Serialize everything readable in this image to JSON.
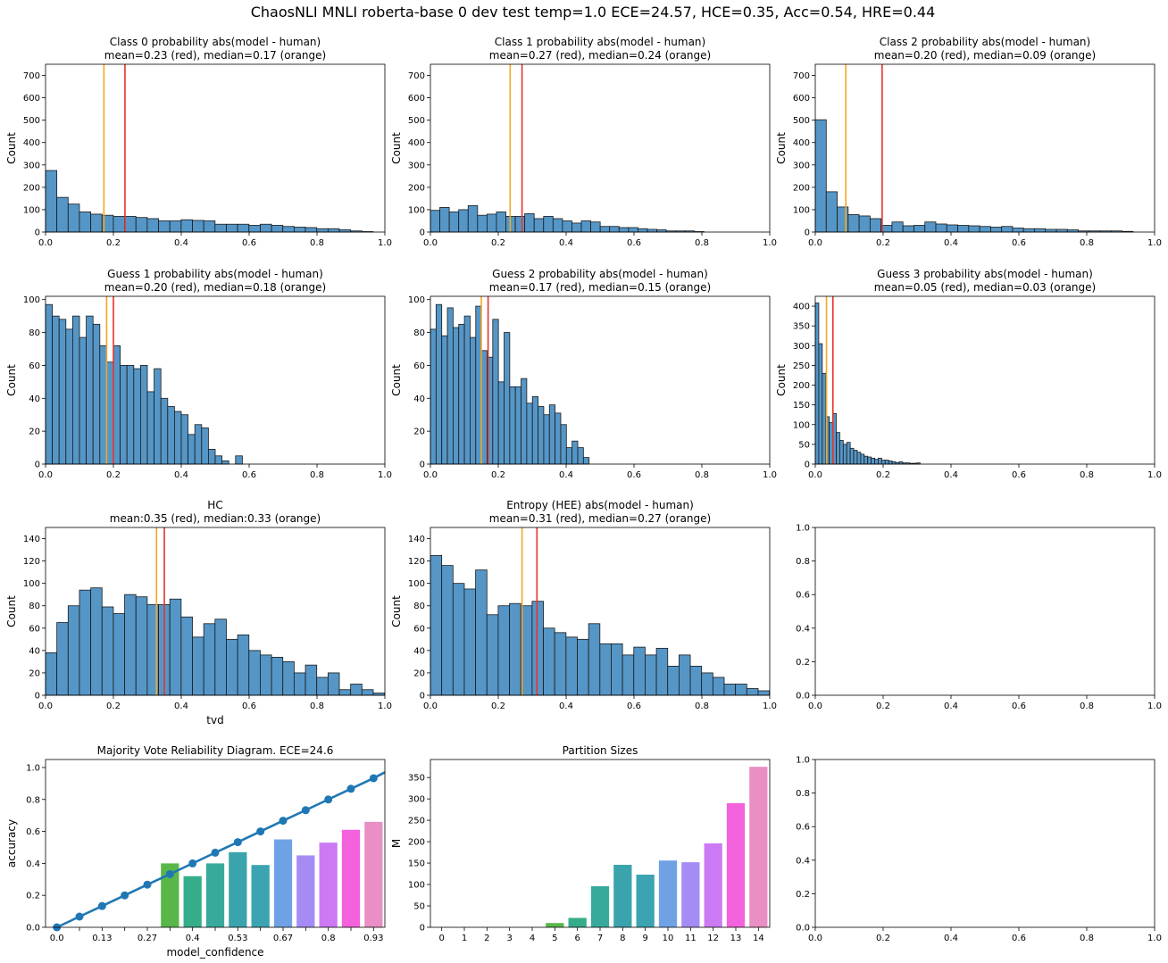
{
  "suptitle": "ChaosNLI MNLI  roberta-base 0 dev  test  temp=1.0 ECE=24.57, HCE=0.35, Acc=0.54, HRE=0.44",
  "chart_data": [
    {
      "type": "bar",
      "title": [
        "Class 0 probability abs(model - human)",
        "mean=0.23 (red), median=0.17 (orange)"
      ],
      "xlabel": "",
      "ylabel": "Count",
      "xlim": [
        0,
        1
      ],
      "ylim": [
        0,
        750
      ],
      "xticks": [
        "0.0",
        "0.2",
        "0.4",
        "0.6",
        "0.8",
        "1.0"
      ],
      "yticks": [
        "0",
        "100",
        "200",
        "300",
        "400",
        "500",
        "600",
        "700"
      ],
      "bin_width": 0.0333,
      "values": [
        275,
        155,
        125,
        90,
        80,
        75,
        70,
        70,
        65,
        60,
        50,
        50,
        55,
        52,
        50,
        35,
        35,
        35,
        30,
        35,
        30,
        25,
        22,
        20,
        15,
        15,
        10,
        5,
        2,
        0
      ],
      "mean": 0.234,
      "median": 0.172
    },
    {
      "type": "bar",
      "title": [
        "Class 1 probability abs(model - human)",
        "mean=0.27 (red), median=0.24 (orange)"
      ],
      "xlabel": "",
      "ylabel": "Count",
      "xlim": [
        0,
        1
      ],
      "ylim": [
        0,
        750
      ],
      "xticks": [
        "0.0",
        "0.2",
        "0.4",
        "0.6",
        "0.8",
        "1.0"
      ],
      "yticks": [
        "0",
        "100",
        "200",
        "300",
        "400",
        "500",
        "600",
        "700"
      ],
      "bin_width": 0.0278,
      "values": [
        97,
        110,
        90,
        100,
        118,
        75,
        80,
        90,
        70,
        70,
        82,
        60,
        70,
        60,
        50,
        40,
        50,
        45,
        25,
        25,
        20,
        20,
        15,
        12,
        10,
        5,
        5,
        5,
        2,
        0
      ],
      "mean": 0.27,
      "median": 0.235
    },
    {
      "type": "bar",
      "title": [
        "Class 2 probability abs(model - human)",
        "mean=0.20 (red), median=0.09 (orange)"
      ],
      "xlabel": "",
      "ylabel": "Count",
      "xlim": [
        0,
        1
      ],
      "ylim": [
        0,
        750
      ],
      "xticks": [
        "0.0",
        "0.2",
        "0.4",
        "0.6",
        "0.8",
        "1.0"
      ],
      "yticks": [
        "0",
        "100",
        "200",
        "300",
        "400",
        "500",
        "600",
        "700"
      ],
      "bin_width": 0.0323,
      "values": [
        502,
        180,
        112,
        78,
        72,
        60,
        30,
        45,
        28,
        30,
        45,
        36,
        32,
        30,
        28,
        25,
        22,
        25,
        18,
        15,
        15,
        12,
        12,
        10,
        5,
        5,
        5,
        5,
        3,
        0
      ],
      "mean": 0.197,
      "median": 0.09
    },
    {
      "type": "bar",
      "title": [
        "Guess 1 probability abs(model - human)",
        "mean=0.20 (red), median=0.18 (orange)"
      ],
      "xlabel": "",
      "ylabel": "Count",
      "xlim": [
        0,
        1
      ],
      "ylim": [
        0,
        102
      ],
      "xticks": [
        "0.0",
        "0.2",
        "0.4",
        "0.6",
        "0.8",
        "1.0"
      ],
      "yticks": [
        "0",
        "20",
        "40",
        "60",
        "80",
        "100"
      ],
      "bin_width": 0.02,
      "values": [
        97,
        90,
        88,
        82,
        90,
        77,
        90,
        85,
        72,
        62,
        72,
        60,
        60,
        58,
        60,
        44,
        58,
        40,
        35,
        32,
        30,
        18,
        24,
        22,
        9,
        5,
        2,
        0,
        5
      ],
      "mean": 0.2,
      "median": 0.18
    },
    {
      "type": "bar",
      "title": [
        "Guess 2 probability abs(model - human)",
        "mean=0.17 (red), median=0.15 (orange)"
      ],
      "xlabel": "",
      "ylabel": "Count",
      "xlim": [
        0,
        1
      ],
      "ylim": [
        0,
        102
      ],
      "xticks": [
        "0.0",
        "0.2",
        "0.4",
        "0.6",
        "0.8",
        "1.0"
      ],
      "yticks": [
        "0",
        "20",
        "40",
        "60",
        "80",
        "100"
      ],
      "bin_width": 0.0167,
      "values": [
        82,
        97,
        78,
        95,
        83,
        85,
        90,
        77,
        96,
        69,
        65,
        88,
        50,
        80,
        47,
        47,
        52,
        37,
        41,
        35,
        30,
        36,
        31,
        24,
        10,
        14,
        10,
        4
      ],
      "mean": 0.17,
      "median": 0.15
    },
    {
      "type": "bar",
      "title": [
        "Guess 3 probability abs(model - human)",
        "mean=0.05 (red), median=0.03 (orange)"
      ],
      "xlabel": "",
      "ylabel": "Count",
      "xlim": [
        0,
        1
      ],
      "ylim": [
        0,
        425
      ],
      "xticks": [
        "0.0",
        "0.2",
        "0.4",
        "0.6",
        "0.8",
        "1.0"
      ],
      "yticks": [
        "0",
        "50",
        "100",
        "150",
        "200",
        "250",
        "300",
        "350",
        "400"
      ],
      "bin_width": 0.0103,
      "values": [
        408,
        305,
        230,
        120,
        105,
        128,
        80,
        60,
        50,
        55,
        40,
        35,
        30,
        25,
        20,
        18,
        15,
        12,
        15,
        10,
        10,
        8,
        6,
        4,
        6,
        3,
        3,
        2,
        2,
        3
      ],
      "mean": 0.052,
      "median": 0.033
    },
    {
      "type": "bar",
      "title": [
        "HC",
        "mean:0.35 (red), median:0.33 (orange)"
      ],
      "xlabel": "tvd",
      "ylabel": "Count",
      "xlim": [
        0,
        1
      ],
      "ylim": [
        0,
        150
      ],
      "xticks": [
        "0.0",
        "0.2",
        "0.4",
        "0.6",
        "0.8",
        "1.0"
      ],
      "yticks": [
        "0",
        "20",
        "40",
        "60",
        "80",
        "100",
        "120",
        "140"
      ],
      "bin_width": 0.0333,
      "values": [
        38,
        65,
        80,
        94,
        96,
        79,
        73,
        90,
        88,
        81,
        81,
        86,
        70,
        52,
        64,
        68,
        50,
        54,
        40,
        36,
        34,
        30,
        20,
        27,
        16,
        20,
        5,
        10,
        5,
        2
      ],
      "mean": 0.35,
      "median": 0.327
    },
    {
      "type": "bar",
      "title": [
        "Entropy (HEE) abs(model - human)",
        "mean=0.31 (red), median=0.27 (orange)"
      ],
      "xlabel": "",
      "ylabel": "Count",
      "xlim": [
        0,
        1
      ],
      "ylim": [
        0,
        150
      ],
      "xticks": [
        "0.0",
        "0.2",
        "0.4",
        "0.6",
        "0.8",
        "1.0"
      ],
      "yticks": [
        "0",
        "20",
        "40",
        "60",
        "80",
        "100",
        "120",
        "140"
      ],
      "bin_width": 0.0333,
      "values": [
        125,
        116,
        100,
        95,
        112,
        72,
        80,
        82,
        80,
        84,
        60,
        56,
        52,
        50,
        64,
        46,
        46,
        36,
        43,
        36,
        42,
        26,
        36,
        26,
        20,
        16,
        10,
        10,
        6,
        4
      ],
      "mean": 0.314,
      "median": 0.27
    },
    {
      "type": "empty",
      "xlim": [
        0,
        1
      ],
      "ylim": [
        0,
        1
      ],
      "xticks": [
        "0.0",
        "0.2",
        "0.4",
        "0.6",
        "0.8",
        "1.0"
      ],
      "yticks": [
        "0.0",
        "0.2",
        "0.4",
        "0.6",
        "0.8",
        "1.0"
      ]
    },
    {
      "type": "bar+line",
      "title": [
        "Majority Vote Reliability Diagram. ECE=24.6"
      ],
      "xlabel": "model_confidence",
      "ylabel": "accuracy",
      "ylim": [
        0,
        1.05
      ],
      "yticks": [
        "0.0",
        "0.2",
        "0.4",
        "0.6",
        "0.8",
        "1.0"
      ],
      "categories": [
        "0.0",
        "0.07",
        "0.13",
        "0.2",
        "0.27",
        "0.33",
        "0.4",
        "0.47",
        "0.53",
        "0.6",
        "0.67",
        "0.73",
        "0.8",
        "0.87",
        "0.93"
      ],
      "shown_tick_labels": [
        "0.0",
        "0.13",
        "0.27",
        "0.4",
        "0.53",
        "0.67",
        "0.8",
        "0.93"
      ],
      "bar_values": [
        0,
        0,
        0,
        0,
        0,
        0.4,
        0.32,
        0.4,
        0.47,
        0.39,
        0.55,
        0.45,
        0.53,
        0.61,
        0.66
      ],
      "line_values": [
        0.0,
        0.067,
        0.133,
        0.2,
        0.267,
        0.333,
        0.4,
        0.467,
        0.533,
        0.6,
        0.667,
        0.733,
        0.8,
        0.867,
        0.933
      ],
      "line_extends_to": 0.97,
      "bar_colors": [
        "#f77189",
        "#e4812a",
        "#bb9832",
        "#97a431",
        "#50b131",
        "#59b74a",
        "#36ad8a",
        "#38aa9d",
        "#3ba3ac",
        "#3ca3b2",
        "#6ea2e5",
        "#a48cf4",
        "#cc7af4",
        "#f461dd",
        "#e98fc5"
      ]
    },
    {
      "type": "bar",
      "title": [
        "Partition Sizes"
      ],
      "xlabel": "",
      "ylabel": "M",
      "ylim": [
        0,
        392
      ],
      "yticks": [
        "0",
        "50",
        "100",
        "150",
        "200",
        "250",
        "300",
        "350"
      ],
      "categories": [
        "0",
        "1",
        "2",
        "3",
        "4",
        "5",
        "6",
        "7",
        "8",
        "9",
        "10",
        "11",
        "12",
        "13",
        "14"
      ],
      "values": [
        0,
        0,
        0,
        0,
        0,
        10,
        22,
        96,
        146,
        123,
        156,
        152,
        196,
        290,
        375
      ],
      "bar_colors": [
        "#f77189",
        "#e4812a",
        "#bb9832",
        "#97a431",
        "#50b131",
        "#59b74a",
        "#36ad8a",
        "#38aa9d",
        "#3ba3ac",
        "#3ca3b2",
        "#6ea2e5",
        "#a48cf4",
        "#cc7af4",
        "#f461dd",
        "#e98fc5"
      ]
    },
    {
      "type": "empty",
      "xlim": [
        0,
        1
      ],
      "ylim": [
        0,
        1
      ],
      "xticks": [
        "0.0",
        "0.2",
        "0.4",
        "0.6",
        "0.8",
        "1.0"
      ],
      "yticks": [
        "0.0",
        "0.2",
        "0.4",
        "0.6",
        "0.8",
        "1.0"
      ]
    }
  ],
  "colors": {
    "hist_fill": "#5596c7",
    "hist_edge": "#1a1a1a",
    "mean_line": "#e8322c",
    "median_line": "#f5a623",
    "reliability_line": "#1f77b4"
  }
}
